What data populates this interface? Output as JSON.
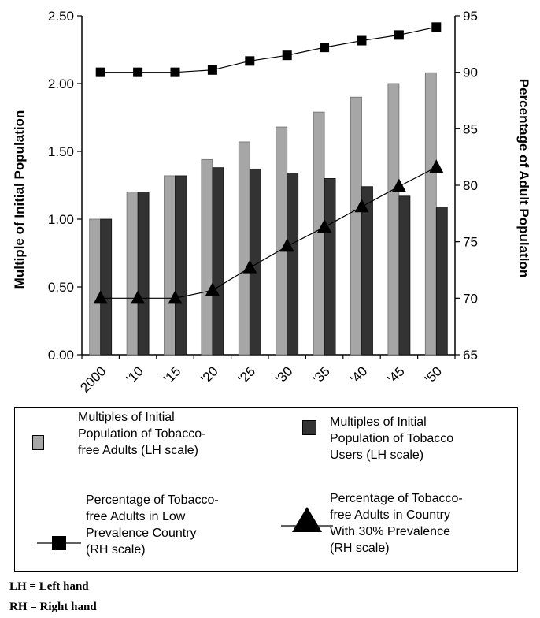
{
  "chart_data": {
    "type": "bar",
    "categories": [
      "2000",
      "'10",
      "'15",
      "'20",
      "'25",
      "'30",
      "'35",
      "'40",
      "'45",
      "'50"
    ],
    "ylabel": "Multiple of Initial Population",
    "y2label": "Percentage of Adult Population",
    "ylim": [
      0,
      2.5
    ],
    "y2lim": [
      65,
      95
    ],
    "yticks": [
      "0.00",
      "0.50",
      "1.00",
      "1.50",
      "2.00",
      "2.50"
    ],
    "y2ticks": [
      "65",
      "70",
      "75",
      "80",
      "85",
      "90",
      "95"
    ],
    "grid": false,
    "series": [
      {
        "name": "Multiples of Initial Population of Tobacco-free Adults (LH scale)",
        "kind": "bar",
        "axis": "left",
        "color": "#a6a6a6",
        "values": [
          1.0,
          1.2,
          1.32,
          1.44,
          1.57,
          1.68,
          1.79,
          1.9,
          2.0,
          2.08
        ]
      },
      {
        "name": "Multiples of Initial Population of Tobacco Users (LH scale)",
        "kind": "bar",
        "axis": "left",
        "color": "#333333",
        "values": [
          1.0,
          1.2,
          1.32,
          1.38,
          1.37,
          1.34,
          1.3,
          1.24,
          1.17,
          1.09
        ]
      },
      {
        "name": "Percentage of Tobacco-free Adults in Low Prevalence Country (RH scale)",
        "kind": "line",
        "marker": "square",
        "axis": "right",
        "color": "#000000",
        "values": [
          90.0,
          90.0,
          90.0,
          90.2,
          91.0,
          91.5,
          92.2,
          92.8,
          93.3,
          94.0
        ]
      },
      {
        "name": "Percentage of Tobacco-free Adults in Country With 30% Prevalence (RH scale)",
        "kind": "line",
        "marker": "triangle",
        "axis": "right",
        "color": "#000000",
        "values": [
          70.0,
          70.0,
          70.0,
          70.7,
          72.7,
          74.6,
          76.3,
          78.1,
          79.9,
          81.6
        ]
      }
    ]
  },
  "legend": {
    "items": [
      {
        "label": "Multiples of Initial\nPopulation of Tobacco-\nfree Adults (LH scale)"
      },
      {
        "label": "Multiples of Initial\nPopulation of Tobacco\nUsers (LH scale)"
      },
      {
        "label": "Percentage of Tobacco-\nfree Adults in Low\nPrevalence Country\n(RH scale)"
      },
      {
        "label": "Percentage of Tobacco-\nfree Adults in Country\nWith 30% Prevalence\n(RH scale)"
      }
    ]
  },
  "footnotes": {
    "lh": "LH = Left hand",
    "rh": "RH = Right hand"
  }
}
